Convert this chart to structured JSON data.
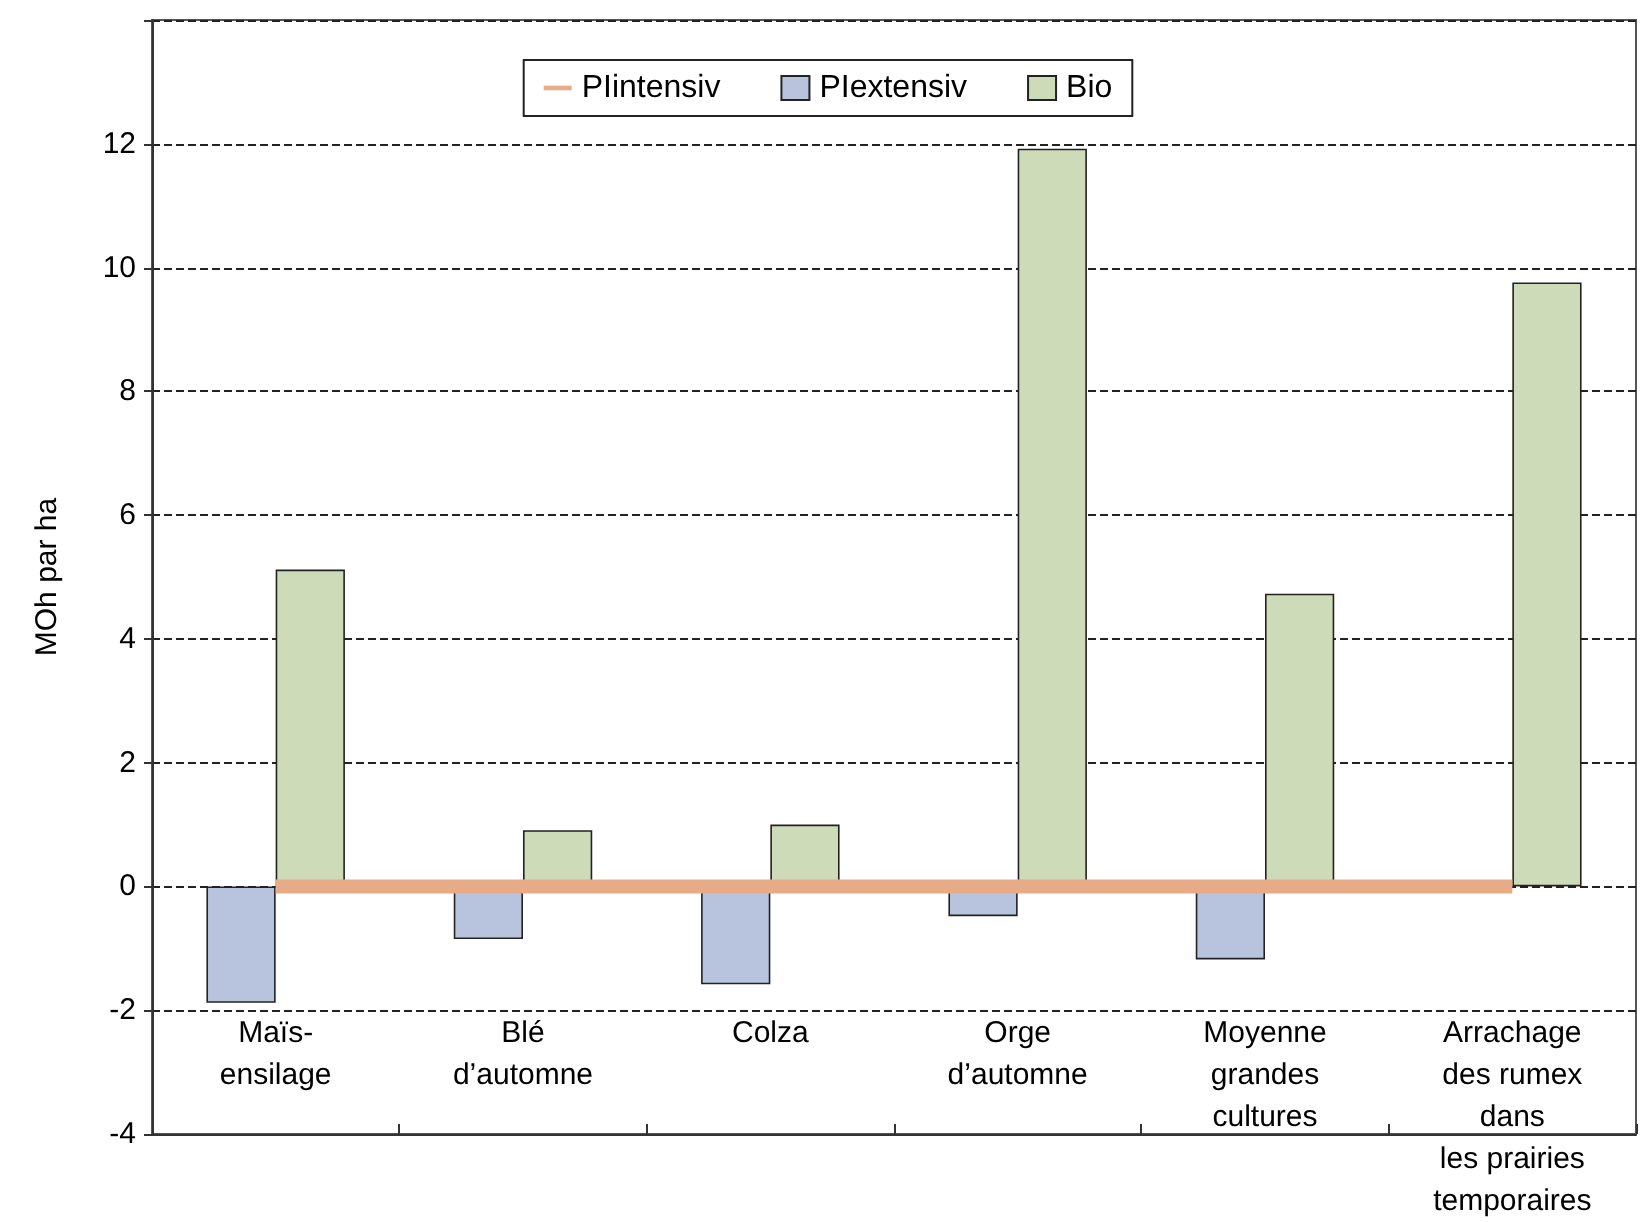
{
  "chart_data": {
    "type": "bar",
    "ylabel": "MOh par ha",
    "categories": [
      "Maïs-\nensilage",
      "Blé\nd’automne",
      "Colza",
      "Orge\nd’automne",
      "Moyenne\ngrandes\ncultures",
      "Arrachage\ndes rumex\ndans\nles prairies\ntemporaires"
    ],
    "series": [
      {
        "name": "PIintensiv",
        "type": "line",
        "color": "#e8ab88",
        "values": [
          0,
          0,
          0,
          0,
          0,
          0
        ]
      },
      {
        "name": "PIextensiv",
        "color": "#b8c4de",
        "values": [
          -1.88,
          -0.85,
          -1.58,
          -0.48,
          -1.18,
          null
        ]
      },
      {
        "name": "Bio",
        "color": "#cddbb8",
        "values": [
          5.12,
          0.91,
          1.0,
          11.92,
          4.73,
          9.76
        ]
      }
    ],
    "ylim": [
      -4,
      14
    ],
    "yticks": [
      -4,
      -2,
      0,
      2,
      4,
      6,
      8,
      10,
      12,
      {
        "value": 14,
        "label": null
      }
    ],
    "grid": "y",
    "legend": "top",
    "marker": "none"
  }
}
